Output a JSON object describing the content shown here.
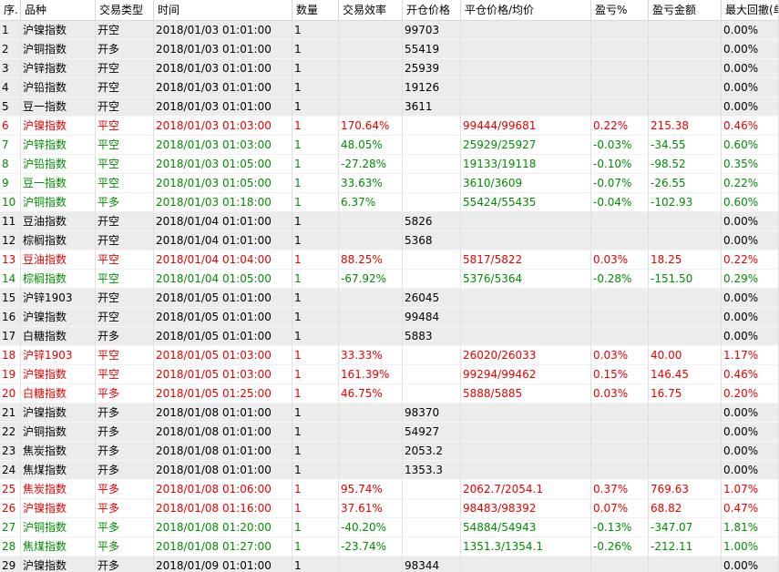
{
  "columns": [
    {
      "label": "序.",
      "w": 23
    },
    {
      "label": "品种",
      "w": 82
    },
    {
      "label": "交易类型",
      "w": 64
    },
    {
      "label": "时间",
      "w": 152
    },
    {
      "label": "数量",
      "w": 51
    },
    {
      "label": "交易效率",
      "w": 70
    },
    {
      "label": "开仓价格",
      "w": 64
    },
    {
      "label": "平仓价格/均价",
      "w": 143
    },
    {
      "label": "盈亏%",
      "w": 63
    },
    {
      "label": "盈亏金额",
      "w": 80
    },
    {
      "label": "最大回撤(单",
      "w": 63
    }
  ],
  "colors": {
    "profit": "#e60000",
    "loss": "#008c00",
    "open_row_bg": "#ececec"
  },
  "rows": [
    {
      "type": "open",
      "cells": [
        "1",
        "沪镍指数",
        "开空",
        "2018/01/03 01:01:00",
        "1",
        "",
        "99703",
        "",
        "",
        "",
        "0.00%"
      ]
    },
    {
      "type": "open",
      "cells": [
        "2",
        "沪铜指数",
        "开多",
        "2018/01/03 01:01:00",
        "1",
        "",
        "55419",
        "",
        "",
        "",
        "0.00%"
      ]
    },
    {
      "type": "open",
      "cells": [
        "3",
        "沪锌指数",
        "开空",
        "2018/01/03 01:01:00",
        "1",
        "",
        "25939",
        "",
        "",
        "",
        "0.00%"
      ]
    },
    {
      "type": "open",
      "cells": [
        "4",
        "沪铅指数",
        "开空",
        "2018/01/03 01:01:00",
        "1",
        "",
        "19126",
        "",
        "",
        "",
        "0.00%"
      ]
    },
    {
      "type": "open",
      "cells": [
        "5",
        "豆一指数",
        "开空",
        "2018/01/03 01:01:00",
        "1",
        "",
        "3611",
        "",
        "",
        "",
        "0.00%"
      ]
    },
    {
      "type": "profit",
      "cells": [
        "6",
        "沪镍指数",
        "平空",
        "2018/01/03 01:03:00",
        "1",
        "170.64%",
        "",
        "99444/99681",
        "0.22%",
        "215.38",
        "0.46%"
      ]
    },
    {
      "type": "loss",
      "cells": [
        "7",
        "沪锌指数",
        "平空",
        "2018/01/03 01:03:00",
        "1",
        "48.05%",
        "",
        "25929/25927",
        "-0.03%",
        "-34.55",
        "0.60%"
      ]
    },
    {
      "type": "loss",
      "cells": [
        "8",
        "沪铅指数",
        "平空",
        "2018/01/03 01:05:00",
        "1",
        "-27.28%",
        "",
        "19133/19118",
        "-0.10%",
        "-98.52",
        "0.35%"
      ]
    },
    {
      "type": "loss",
      "cells": [
        "9",
        "豆一指数",
        "平空",
        "2018/01/03 01:05:00",
        "1",
        "33.63%",
        "",
        "3610/3609",
        "-0.07%",
        "-26.55",
        "0.22%"
      ]
    },
    {
      "type": "loss",
      "cells": [
        "10",
        "沪铜指数",
        "平多",
        "2018/01/03 01:18:00",
        "1",
        "6.37%",
        "",
        "55424/55435",
        "-0.04%",
        "-102.93",
        "0.60%"
      ]
    },
    {
      "type": "open",
      "cells": [
        "11",
        "豆油指数",
        "开空",
        "2018/01/04 01:01:00",
        "1",
        "",
        "5826",
        "",
        "",
        "",
        "0.00%"
      ]
    },
    {
      "type": "open",
      "cells": [
        "12",
        "棕榈指数",
        "开空",
        "2018/01/04 01:01:00",
        "1",
        "",
        "5368",
        "",
        "",
        "",
        "0.00%"
      ]
    },
    {
      "type": "profit",
      "cells": [
        "13",
        "豆油指数",
        "平空",
        "2018/01/04 01:04:00",
        "1",
        "88.25%",
        "",
        "5817/5822",
        "0.03%",
        "18.25",
        "0.22%"
      ]
    },
    {
      "type": "loss",
      "cells": [
        "14",
        "棕榈指数",
        "平空",
        "2018/01/04 01:05:00",
        "1",
        "-67.92%",
        "",
        "5376/5364",
        "-0.28%",
        "-151.50",
        "0.29%"
      ]
    },
    {
      "type": "open",
      "cells": [
        "15",
        "沪锌1903",
        "开空",
        "2018/01/05 01:01:00",
        "1",
        "",
        "26045",
        "",
        "",
        "",
        "0.00%"
      ]
    },
    {
      "type": "open",
      "cells": [
        "16",
        "沪镍指数",
        "开空",
        "2018/01/05 01:01:00",
        "1",
        "",
        "99484",
        "",
        "",
        "",
        "0.00%"
      ]
    },
    {
      "type": "open",
      "cells": [
        "17",
        "白糖指数",
        "开多",
        "2018/01/05 01:01:00",
        "1",
        "",
        "5883",
        "",
        "",
        "",
        "0.00%"
      ]
    },
    {
      "type": "profit",
      "cells": [
        "18",
        "沪锌1903",
        "平空",
        "2018/01/05 01:03:00",
        "1",
        "33.33%",
        "",
        "26020/26033",
        "0.03%",
        "40.00",
        "1.17%"
      ]
    },
    {
      "type": "profit",
      "cells": [
        "19",
        "沪镍指数",
        "平空",
        "2018/01/05 01:03:00",
        "1",
        "161.39%",
        "",
        "99294/99462",
        "0.15%",
        "146.45",
        "0.46%"
      ]
    },
    {
      "type": "profit",
      "cells": [
        "20",
        "白糖指数",
        "平多",
        "2018/01/05 01:25:00",
        "1",
        "46.75%",
        "",
        "5888/5885",
        "0.03%",
        "16.75",
        "0.20%"
      ]
    },
    {
      "type": "open",
      "cells": [
        "21",
        "沪镍指数",
        "开多",
        "2018/01/08 01:01:00",
        "1",
        "",
        "98370",
        "",
        "",
        "",
        "0.00%"
      ]
    },
    {
      "type": "open",
      "cells": [
        "22",
        "沪铜指数",
        "开多",
        "2018/01/08 01:01:00",
        "1",
        "",
        "54927",
        "",
        "",
        "",
        "0.00%"
      ]
    },
    {
      "type": "open",
      "cells": [
        "23",
        "焦炭指数",
        "开多",
        "2018/01/08 01:01:00",
        "1",
        "",
        "2053.2",
        "",
        "",
        "",
        "0.00%"
      ]
    },
    {
      "type": "open",
      "cells": [
        "24",
        "焦煤指数",
        "开多",
        "2018/01/08 01:01:00",
        "1",
        "",
        "1353.3",
        "",
        "",
        "",
        "0.00%"
      ]
    },
    {
      "type": "profit",
      "cells": [
        "25",
        "焦炭指数",
        "平多",
        "2018/01/08 01:06:00",
        "1",
        "95.74%",
        "",
        "2062.7/2054.1",
        "0.37%",
        "769.63",
        "1.07%"
      ]
    },
    {
      "type": "profit",
      "cells": [
        "26",
        "沪镍指数",
        "平多",
        "2018/01/08 01:16:00",
        "1",
        "37.61%",
        "",
        "98483/98392",
        "0.07%",
        "68.82",
        "0.47%"
      ]
    },
    {
      "type": "loss",
      "cells": [
        "27",
        "沪铜指数",
        "平多",
        "2018/01/08 01:20:00",
        "1",
        "-40.20%",
        "",
        "54884/54943",
        "-0.13%",
        "-347.07",
        "1.81%"
      ]
    },
    {
      "type": "loss",
      "cells": [
        "28",
        "焦煤指数",
        "平多",
        "2018/01/08 01:27:00",
        "1",
        "-23.74%",
        "",
        "1351.3/1354.1",
        "-0.26%",
        "-212.11",
        "1.00%"
      ]
    },
    {
      "type": "open",
      "cells": [
        "29",
        "沪镍指数",
        "开多",
        "2018/01/09 01:01:00",
        "1",
        "",
        "98344",
        "",
        "",
        "",
        "0.00%"
      ]
    }
  ]
}
